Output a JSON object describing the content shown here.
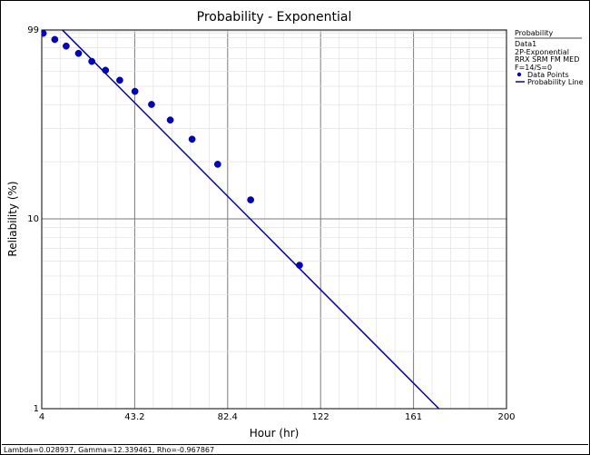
{
  "chart_data": {
    "type": "scatter",
    "title": "Probability - Exponential",
    "xlabel": "Hour (hr)",
    "ylabel": "Reliability (%)",
    "x_scale": "linear",
    "y_scale": "log",
    "xlim": [
      4,
      200
    ],
    "ylim": [
      1,
      99
    ],
    "x_ticks": [
      "4",
      "43.2",
      "82.4",
      "122",
      "161",
      "200"
    ],
    "y_ticks": [
      "99",
      "10",
      "1"
    ],
    "grid": true,
    "legend_position": "right",
    "legend": {
      "header": "Probability",
      "lines": [
        "Data1",
        "2P-Exponential",
        "RRX SRM FM MED",
        "F=14/S=0"
      ],
      "entries": [
        "Data Points",
        "Probability Line"
      ]
    },
    "series": [
      {
        "name": "Data Points",
        "x": [
          4.6,
          9.5,
          14.3,
          19.5,
          25.1,
          30.9,
          36.9,
          43.3,
          50.3,
          58.2,
          67.4,
          78.2,
          92.1,
          112.7
        ],
        "y": [
          95.1,
          88.2,
          81.4,
          74.5,
          67.6,
          60.7,
          53.8,
          47.0,
          40.1,
          33.2,
          26.3,
          19.4,
          12.6,
          5.7
        ]
      },
      {
        "name": "Probability Line",
        "type": "line",
        "lambda": 0.028937,
        "gamma": 12.339461
      }
    ],
    "color": "#0000cc"
  },
  "status_bar": {
    "text": "Lambda=0.028937, Gamma=12.339461, Rho=-0.967867"
  }
}
